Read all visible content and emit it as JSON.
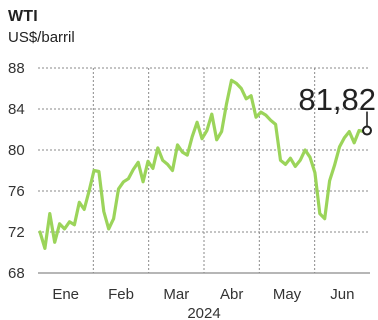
{
  "chart_data": {
    "type": "line",
    "title": "WTI",
    "ylabel": "US$/barril",
    "xlabel": "2024",
    "ylim": [
      68,
      88
    ],
    "yticks": [
      68,
      72,
      76,
      80,
      84,
      88
    ],
    "month_labels": [
      "Ene",
      "Feb",
      "Mar",
      "Abr",
      "May",
      "Jun"
    ],
    "last_value_label": "81,82",
    "series": [
      {
        "values": [
          72.0,
          70.4,
          73.8,
          71.0,
          72.8,
          72.3,
          73.0,
          72.7,
          74.9,
          74.2,
          76.0,
          78.0,
          77.9,
          74.0,
          72.3,
          73.3,
          76.2,
          76.9,
          77.2,
          78.1,
          78.8,
          76.9,
          78.9,
          78.2,
          80.2,
          79.0,
          78.6,
          78.0,
          80.5,
          79.8,
          79.5,
          81.3,
          82.7,
          81.1,
          81.9,
          83.5,
          81.0,
          81.8,
          84.5,
          86.8,
          86.5,
          86.0,
          85.0,
          85.3,
          83.2,
          83.7,
          83.4,
          82.9,
          82.5,
          79.0,
          78.6,
          79.2,
          78.4,
          79.0,
          80.0,
          79.3,
          77.8,
          73.8,
          73.3,
          77.0,
          78.5,
          80.3,
          81.2,
          81.8,
          80.7,
          81.9,
          81.8
        ]
      }
    ],
    "colors": {
      "line": "#9bd45a",
      "grid": "#8a8a8a",
      "text": "#222222"
    }
  }
}
